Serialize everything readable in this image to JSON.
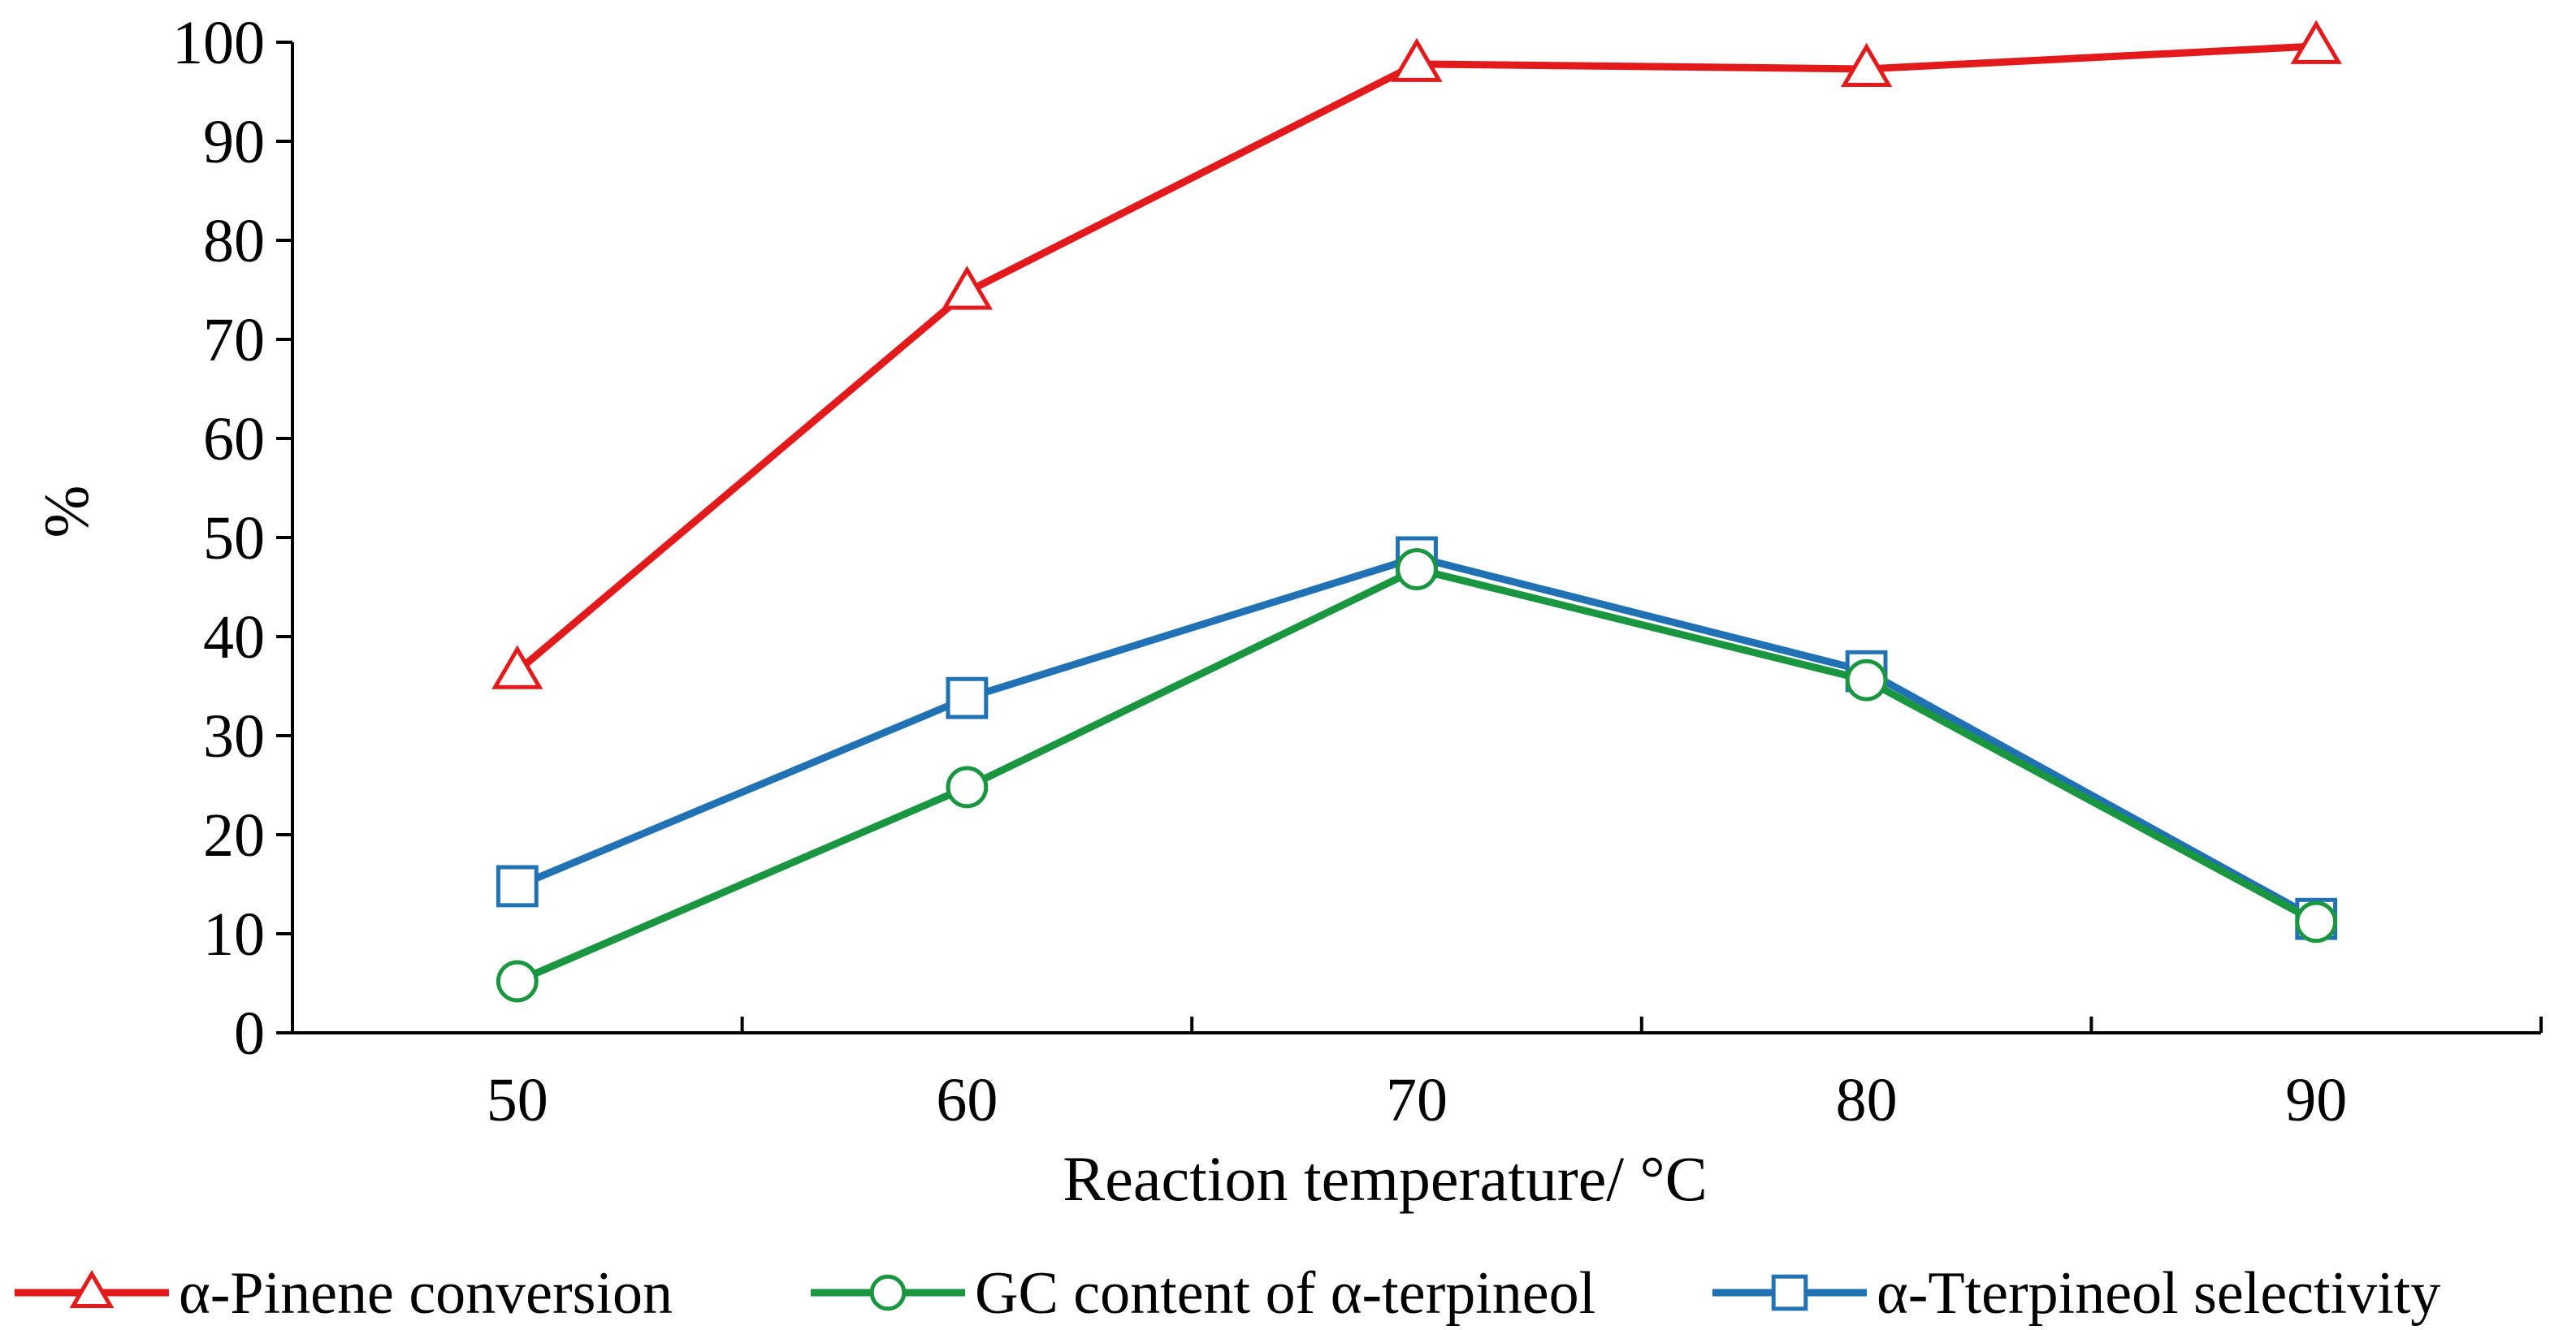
{
  "chart_data": {
    "type": "line",
    "categories": [
      "50",
      "60",
      "70",
      "80",
      "90"
    ],
    "x": [
      50,
      60,
      70,
      80,
      90
    ],
    "xlim": [
      45,
      95
    ],
    "ylim": [
      0,
      100
    ],
    "yticks": [
      "0",
      "10",
      "20",
      "30",
      "40",
      "50",
      "60",
      "70",
      "80",
      "90",
      "100"
    ],
    "ytick_values": [
      0,
      10,
      20,
      30,
      40,
      50,
      60,
      70,
      80,
      90,
      100
    ],
    "xlabel": "Reaction temperature/ °C",
    "ylabel": "%",
    "grid": false,
    "legend_position": "bottom",
    "series": [
      {
        "name": "α-Pinene conversion",
        "color": "#e31a1c",
        "marker": "triangle",
        "values": [
          36.5,
          74.8,
          97.8,
          97.3,
          99.6
        ]
      },
      {
        "name": "GC content of α-terpineol",
        "color": "#1a9641",
        "marker": "circle",
        "values": [
          5.2,
          24.8,
          46.8,
          35.6,
          11.2
        ]
      },
      {
        "name": "α-Tterpineol selectivity",
        "color": "#2171b5",
        "marker": "square",
        "values": [
          14.8,
          33.8,
          48.0,
          36.5,
          11.5
        ]
      }
    ]
  }
}
